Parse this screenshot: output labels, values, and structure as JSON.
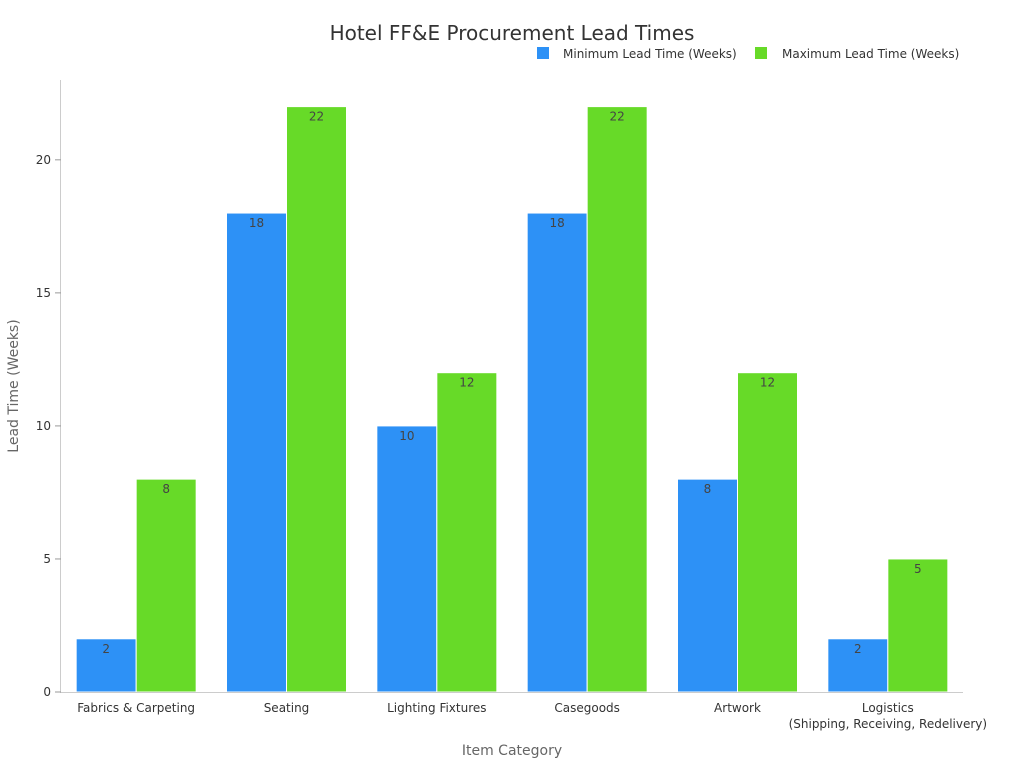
{
  "chart_data": {
    "type": "bar",
    "title": "Hotel FF&E Procurement Lead Times",
    "xlabel": "Item Category",
    "ylabel": "Lead Time (Weeks)",
    "ylim": [
      0,
      23
    ],
    "yticks": [
      0,
      5,
      10,
      15,
      20
    ],
    "grid": false,
    "legend_position": "top-right",
    "categories": [
      "Fabrics & Carpeting",
      "Seating",
      "Lighting Fixtures",
      "Casegoods",
      "Artwork",
      "Logistics\n(Shipping, Receiving, Redelivery)"
    ],
    "series": [
      {
        "name": "Minimum Lead Time (Weeks)",
        "color": "#2d91f6",
        "values": [
          2,
          18,
          10,
          18,
          8,
          2
        ]
      },
      {
        "name": "Maximum Lead Time (Weeks)",
        "color": "#67da28",
        "values": [
          8,
          22,
          12,
          22,
          12,
          5
        ]
      }
    ]
  }
}
